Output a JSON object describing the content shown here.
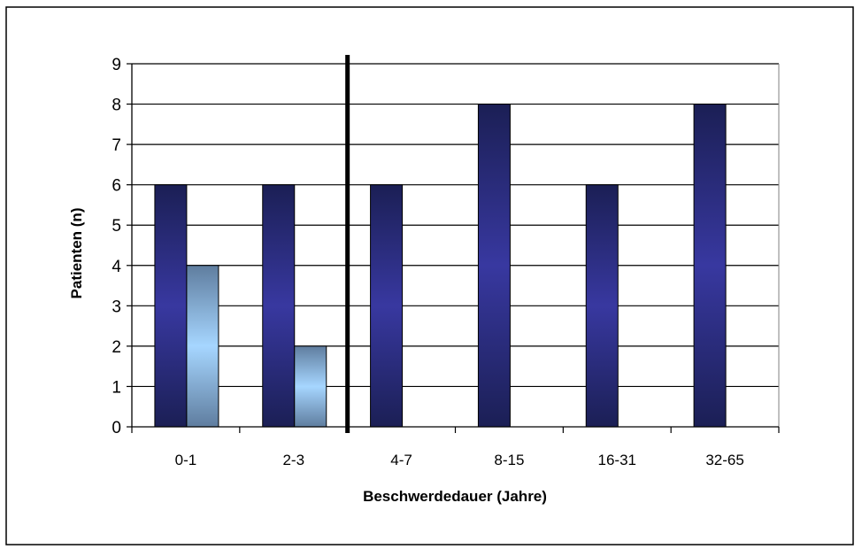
{
  "chart_data": {
    "type": "bar",
    "title": "",
    "xlabel": "Beschwerdedauer (Jahre)",
    "ylabel": "Patienten (n)",
    "categories": [
      "0-1",
      "2-3",
      "4-7",
      "8-15",
      "16-31",
      "32-65"
    ],
    "series": [
      {
        "values": [
          6,
          6,
          6,
          8,
          6,
          8
        ]
      },
      {
        "values": [
          4,
          2,
          null,
          null,
          null,
          null
        ]
      }
    ],
    "ylim": [
      0,
      9
    ],
    "yticks": [
      "0",
      "1",
      "2",
      "3",
      "4",
      "5",
      "6",
      "7",
      "8",
      "9"
    ],
    "grid": true,
    "legend": "none",
    "divider_after_category": "2-3"
  },
  "colors": {
    "series_1_edge": "#1b1f55",
    "series_1_mid": "#3838a0",
    "series_2_edge": "#5f7d9f",
    "series_2_mid": "#a6d6ff",
    "grid": "#000000",
    "divider": "#000000"
  }
}
